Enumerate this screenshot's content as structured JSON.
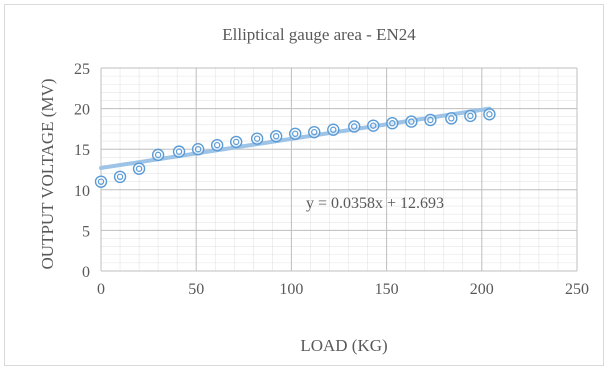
{
  "chart_data": {
    "type": "scatter",
    "title": "Elliptical gauge area - EN24",
    "xlabel": "LOAD (KG)",
    "ylabel": "OUTPUT VOLTAGE (MV)",
    "xlim": [
      0,
      250
    ],
    "ylim": [
      0,
      25
    ],
    "x_ticks": [
      "0",
      "50",
      "100",
      "150",
      "200",
      "250"
    ],
    "y_ticks": [
      "0",
      "5",
      "10",
      "15",
      "20",
      "25"
    ],
    "grid": true,
    "legend": "none",
    "points": [
      {
        "x": 0,
        "y": 11.0
      },
      {
        "x": 10,
        "y": 11.6
      },
      {
        "x": 20,
        "y": 12.6
      },
      {
        "x": 30,
        "y": 14.3
      },
      {
        "x": 41,
        "y": 14.7
      },
      {
        "x": 51,
        "y": 15.0
      },
      {
        "x": 61,
        "y": 15.5
      },
      {
        "x": 71,
        "y": 15.9
      },
      {
        "x": 82,
        "y": 16.3
      },
      {
        "x": 92,
        "y": 16.6
      },
      {
        "x": 102,
        "y": 16.9
      },
      {
        "x": 112,
        "y": 17.1
      },
      {
        "x": 122,
        "y": 17.4
      },
      {
        "x": 133,
        "y": 17.8
      },
      {
        "x": 143,
        "y": 17.9
      },
      {
        "x": 153,
        "y": 18.2
      },
      {
        "x": 163,
        "y": 18.4
      },
      {
        "x": 173,
        "y": 18.6
      },
      {
        "x": 184,
        "y": 18.8
      },
      {
        "x": 194,
        "y": 19.1
      },
      {
        "x": 204,
        "y": 19.3
      }
    ],
    "trendline": {
      "type": "linear",
      "slope": 0.0358,
      "intercept": 12.693,
      "x_range": [
        0,
        204
      ],
      "equation_label": "y = 0.0358x + 12.693"
    },
    "colors": {
      "marker": "#5b9bd5",
      "trendline": "#9dc3e6",
      "grid": "#d9d9d9",
      "text": "#595959"
    }
  }
}
